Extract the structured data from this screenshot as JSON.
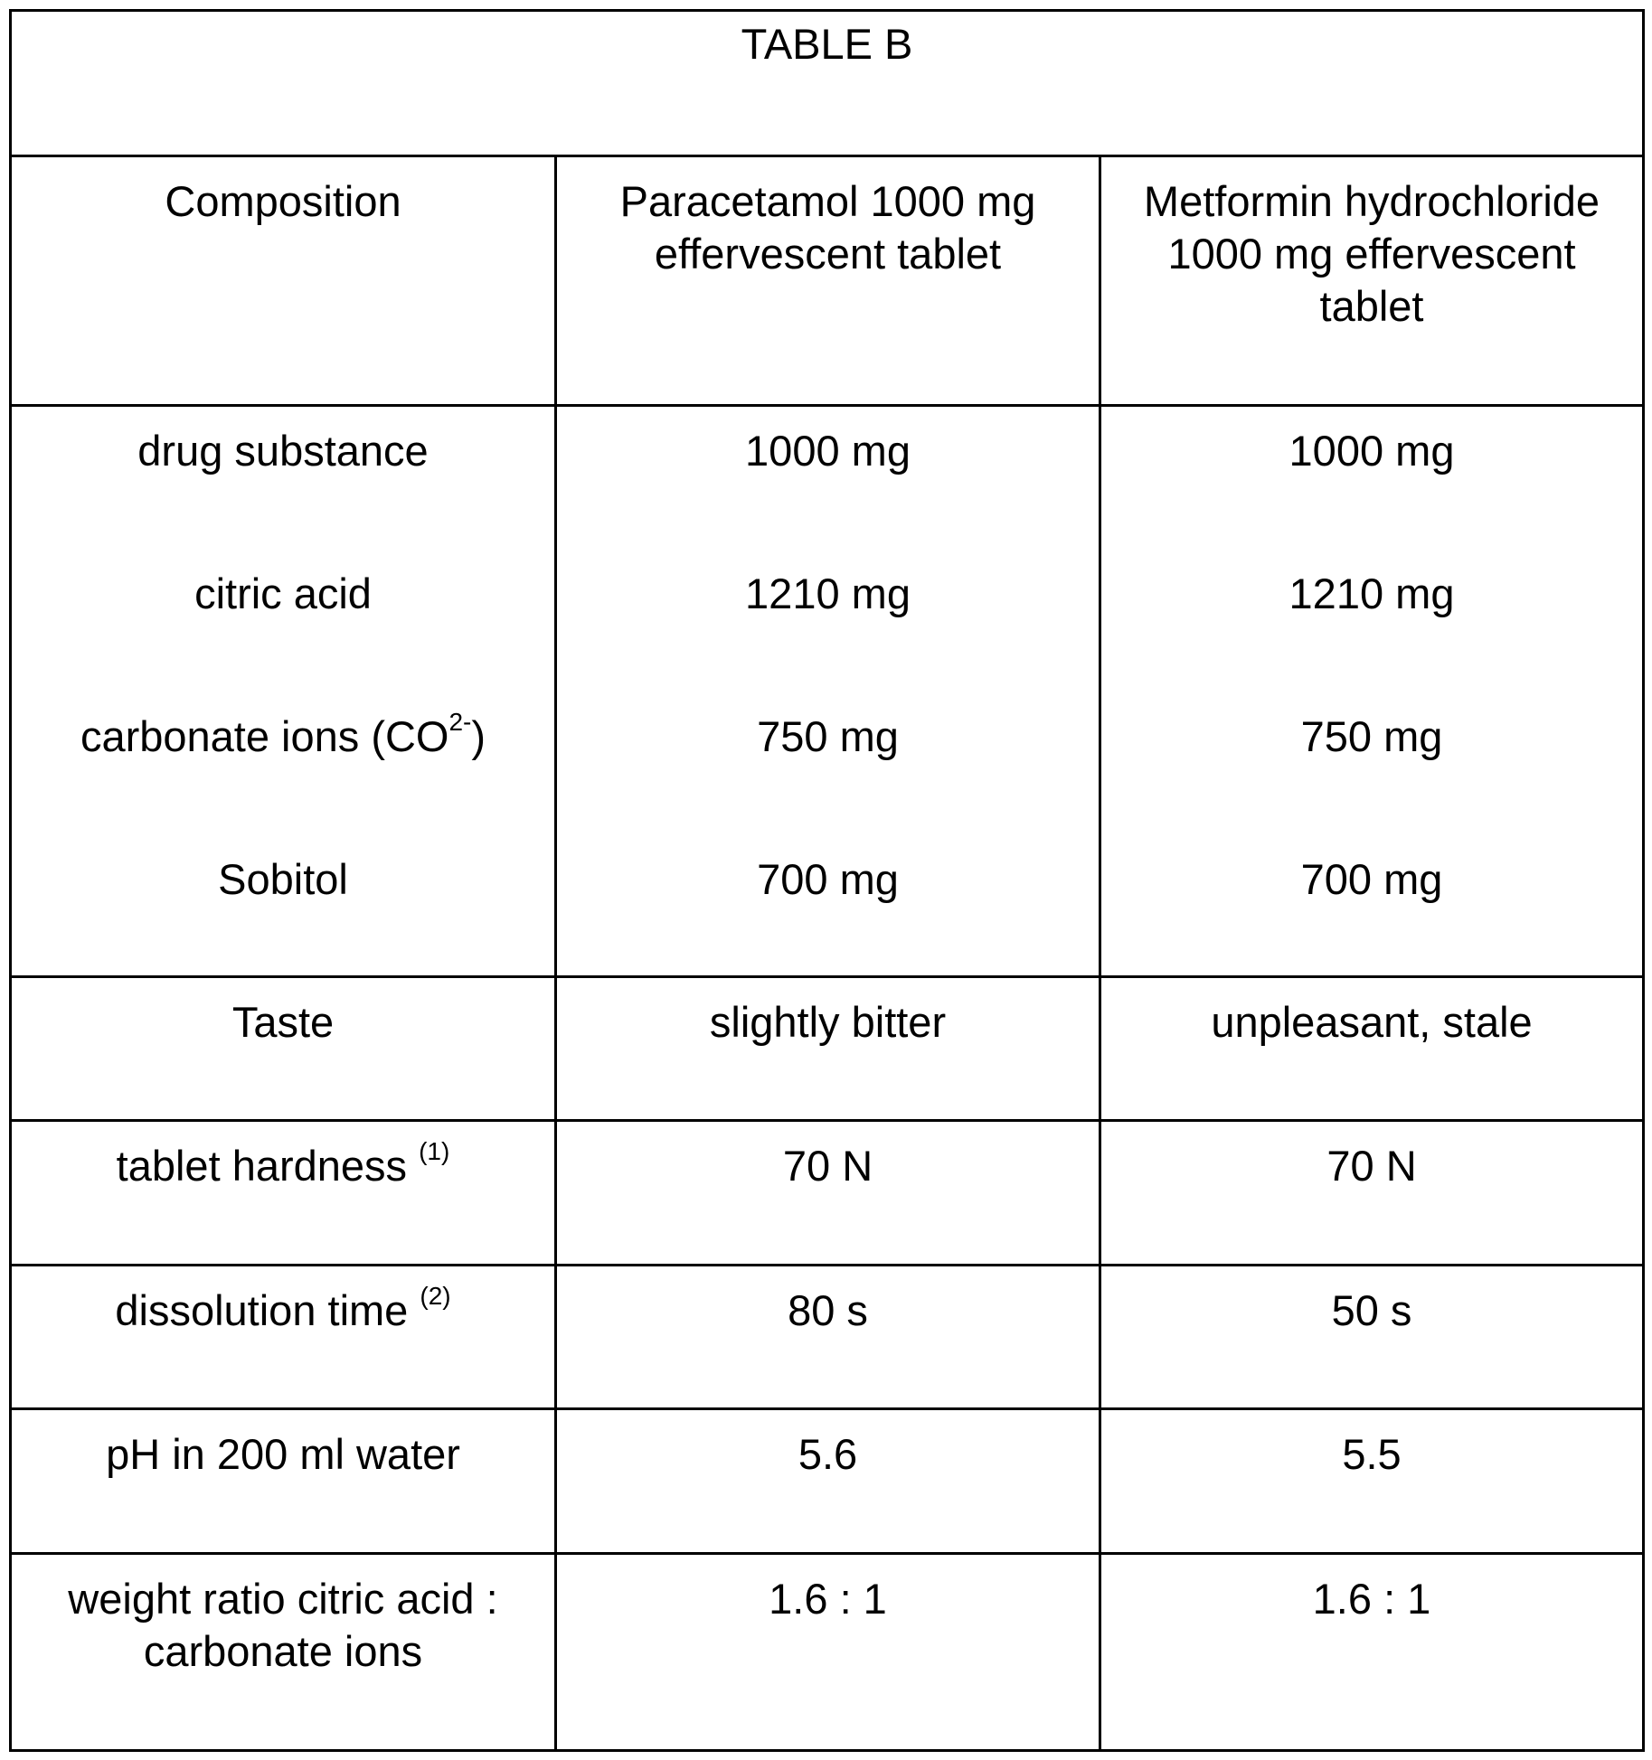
{
  "table": {
    "title": "TABLE B",
    "headers": {
      "composition": "Composition",
      "paracetamol": "Paracetamol 1000 mg effervescent tablet",
      "metformin": "Metformin hydrochloride 1000 mg effervescent tablet"
    },
    "composition_rows": [
      {
        "label": "drug substance",
        "paracetamol": "1000 mg",
        "metformin": "1000 mg"
      },
      {
        "label": "citric acid",
        "paracetamol": "1210 mg",
        "metformin": "1210 mg"
      },
      {
        "label_main": "carbonate ions (CO",
        "label_sup": "2-",
        "label_end": ")",
        "paracetamol": "750 mg",
        "metformin": "750 mg"
      },
      {
        "label": "Sobitol",
        "paracetamol": "700 mg",
        "metformin": "700 mg"
      }
    ],
    "taste": {
      "label": "Taste",
      "paracetamol": "slightly bitter",
      "metformin": "unpleasant, stale"
    },
    "hardness": {
      "label": "tablet hardness",
      "footnote": "(1)",
      "paracetamol": "70 N",
      "metformin": "70 N"
    },
    "dissolution": {
      "label": "dissolution time",
      "footnote": "(2)",
      "paracetamol": "80 s",
      "metformin": "50 s"
    },
    "ph": {
      "label": "pH in 200 ml water",
      "paracetamol": "5.6",
      "metformin": "5.5"
    },
    "ratio": {
      "label": "weight ratio citric acid : carbonate ions",
      "paracetamol": "1.6 : 1",
      "metformin": "1.6 : 1"
    }
  }
}
